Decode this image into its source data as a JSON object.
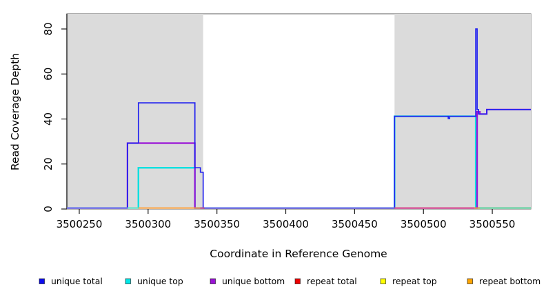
{
  "chart_data": {
    "type": "line",
    "title": "",
    "xlabel": "Coordinate in Reference Genome",
    "ylabel": "Read Coverage Depth",
    "xlim": [
      3500241,
      3500578
    ],
    "ylim": [
      0,
      84
    ],
    "x_ticks": [
      3500250,
      3500300,
      3500350,
      3500400,
      3500450,
      3500500,
      3500550
    ],
    "y_ticks": [
      0,
      20,
      40,
      60,
      80
    ],
    "grid": false,
    "legend_position": "bottom",
    "colors": {
      "shade": "#dbdbdb",
      "frame": "#787878",
      "axis": "#1a1a1a"
    },
    "shaded_regions": [
      {
        "x1": 3500241,
        "x2": 3500340
      },
      {
        "x1": 3500479,
        "x2": 3500578
      }
    ],
    "series": [
      {
        "name": "unique top",
        "color": "#00e0e0",
        "width": 2.4,
        "points": [
          [
            3500241,
            0
          ],
          [
            3500293,
            0
          ],
          [
            3500293,
            18
          ],
          [
            3500334,
            18
          ],
          [
            3500334,
            0
          ],
          [
            3500479,
            0
          ],
          [
            3500479,
            41
          ],
          [
            3500538,
            41
          ],
          [
            3500538,
            0
          ],
          [
            3500578,
            0
          ]
        ]
      },
      {
        "name": "unique bottom",
        "color": "#9a12d6",
        "width": 2.2,
        "points": [
          [
            3500241,
            0
          ],
          [
            3500285,
            0
          ],
          [
            3500285,
            29
          ],
          [
            3500334,
            29
          ],
          [
            3500334,
            0
          ],
          [
            3500539,
            0
          ],
          [
            3500539,
            43
          ],
          [
            3500541,
            43
          ],
          [
            3500541,
            42
          ],
          [
            3500546,
            42
          ],
          [
            3500546,
            44
          ],
          [
            3500578,
            44
          ]
        ]
      },
      {
        "name": "unique total",
        "color": "#2424ef",
        "width": 1.7,
        "points": [
          [
            3500241,
            0
          ],
          [
            3500285,
            0
          ],
          [
            3500285,
            29
          ],
          [
            3500293,
            29
          ],
          [
            3500293,
            47
          ],
          [
            3500334,
            47
          ],
          [
            3500334,
            18
          ],
          [
            3500338,
            18
          ],
          [
            3500338,
            16
          ],
          [
            3500340,
            16
          ],
          [
            3500340,
            0
          ],
          [
            3500479,
            0
          ],
          [
            3500479,
            41
          ],
          [
            3500518,
            41
          ],
          [
            3500518,
            40
          ],
          [
            3500519,
            40
          ],
          [
            3500519,
            41
          ],
          [
            3500538,
            41
          ],
          [
            3500538,
            80
          ],
          [
            3500539,
            80
          ],
          [
            3500539,
            44
          ],
          [
            3500540,
            44
          ],
          [
            3500540,
            42
          ],
          [
            3500546,
            42
          ],
          [
            3500546,
            44
          ],
          [
            3500578,
            44
          ]
        ]
      }
    ],
    "baseline_segments": [
      {
        "x1": 3500241,
        "x2": 3500285,
        "color": "#7c78e8"
      },
      {
        "x1": 3500285,
        "x2": 3500293,
        "color": "#8fe3c3"
      },
      {
        "x1": 3500293,
        "x2": 3500338,
        "color": "#ff9e33"
      },
      {
        "x1": 3500338,
        "x2": 3500341,
        "color": "#e0557d"
      },
      {
        "x1": 3500341,
        "x2": 3500479,
        "color": "#7c78e8"
      },
      {
        "x1": 3500479,
        "x2": 3500537,
        "color": "#e0557d"
      },
      {
        "x1": 3500537,
        "x2": 3500541,
        "color": "#ffa033"
      },
      {
        "x1": 3500541,
        "x2": 3500578,
        "color": "#8fcb90"
      }
    ],
    "legend": {
      "items": [
        {
          "label": "unique total",
          "color": "#0d0dee"
        },
        {
          "label": "unique top",
          "color": "#00e8e8"
        },
        {
          "label": "unique bottom",
          "color": "#9a12d6"
        },
        {
          "label": "repeat total",
          "color": "#ee0000"
        },
        {
          "label": "repeat top",
          "color": "#ffff00"
        },
        {
          "label": "repeat bottom",
          "color": "#ffa500"
        }
      ]
    }
  }
}
